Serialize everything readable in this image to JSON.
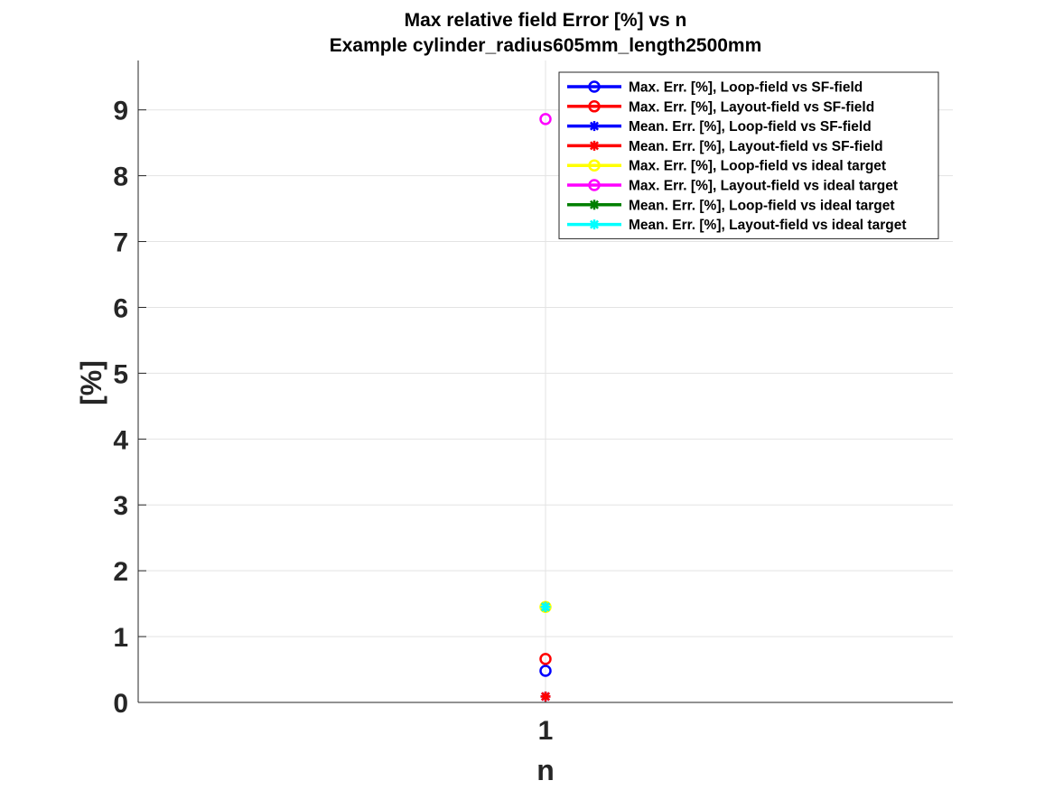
{
  "chart_data": {
    "type": "scatter",
    "title": [
      "Max relative field Error [%] vs n",
      "Example cylinder_radius605mm_length2500mm"
    ],
    "xlabel": "n",
    "ylabel": "[%]",
    "x_ticks": [
      "1"
    ],
    "y_ticks": [
      "0",
      "1",
      "2",
      "3",
      "4",
      "5",
      "6",
      "7",
      "8",
      "9"
    ],
    "xlim": [
      0,
      2
    ],
    "ylim": [
      0,
      9.75
    ],
    "grid": true,
    "legend_position": "top-right",
    "series": [
      {
        "name": "Max. Err. [%], Loop-field vs SF-field",
        "color": "#0000ff",
        "marker": "circle",
        "x": [
          1
        ],
        "y": [
          0.48
        ]
      },
      {
        "name": "Max. Err. [%], Layout-field vs SF-field",
        "color": "#ff0000",
        "marker": "circle",
        "x": [
          1
        ],
        "y": [
          0.66
        ]
      },
      {
        "name": "Mean. Err. [%], Loop-field vs SF-field",
        "color": "#0000ff",
        "marker": "asterisk",
        "x": [
          1
        ],
        "y": [
          0.09
        ]
      },
      {
        "name": "Mean. Err. [%], Layout-field vs SF-field",
        "color": "#ff0000",
        "marker": "asterisk",
        "x": [
          1
        ],
        "y": [
          0.09
        ]
      },
      {
        "name": "Max. Err. [%], Loop-field vs ideal target",
        "color": "#ffff00",
        "marker": "circle",
        "x": [
          1
        ],
        "y": [
          1.45
        ]
      },
      {
        "name": "Max. Err. [%], Layout-field vs ideal target",
        "color": "#ff00ff",
        "marker": "circle",
        "x": [
          1
        ],
        "y": [
          8.86
        ]
      },
      {
        "name": "Mean. Err. [%], Loop-field vs ideal target",
        "color": "#008000",
        "marker": "asterisk",
        "x": [
          1
        ],
        "y": [
          1.45
        ]
      },
      {
        "name": "Mean. Err. [%], Layout-field vs ideal target",
        "color": "#00ffff",
        "marker": "asterisk",
        "x": [
          1
        ],
        "y": [
          1.45
        ]
      }
    ]
  }
}
